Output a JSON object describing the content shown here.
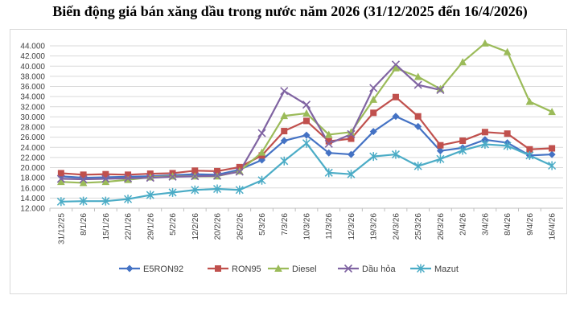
{
  "title": "Biến động giá bán xăng dầu trong nước năm 2026 (31/12/2025 đến 16/4/2026)",
  "chart_data": {
    "type": "line",
    "title": "Biến động giá bán xăng dầu trong nước năm 2026 (31/12/2025 đến 16/4/2026)",
    "xlabel": "",
    "ylabel": "",
    "ylim": [
      12000,
      44000
    ],
    "yticks": [
      12000,
      14000,
      16000,
      18000,
      20000,
      22000,
      24000,
      26000,
      28000,
      30000,
      32000,
      34000,
      36000,
      38000,
      40000,
      42000,
      44000
    ],
    "ytick_labels": [
      "12.000",
      "14.000",
      "16.000",
      "18.000",
      "20.000",
      "22.000",
      "24.000",
      "26.000",
      "28.000",
      "30.000",
      "32.000",
      "34.000",
      "36.000",
      "38.000",
      "40.000",
      "42.000",
      "44.000"
    ],
    "grid": true,
    "legend_position": "bottom",
    "categories": [
      "31/12/25",
      "8/1/26",
      "15/1/26",
      "22/1/26",
      "29/1/26",
      "5/2/26",
      "12/2/26",
      "20/2/26",
      "26/2/26",
      "5/3/26",
      "7/3/26",
      "10/3/26",
      "11/3/26",
      "12/3/26",
      "19/3/26",
      "24/3/26",
      "25/3/26",
      "26/3/26",
      "2/4/26",
      "3/4/26",
      "8/4/26",
      "9/4/26",
      "16/4/26"
    ],
    "series": [
      {
        "name": "E5RON92",
        "color": "#4472C4",
        "marker": "diamond",
        "values": [
          18300,
          18000,
          18100,
          18200,
          18300,
          18500,
          18700,
          18600,
          19600,
          21500,
          25300,
          26400,
          22900,
          22600,
          27100,
          30100,
          28100,
          23300,
          23900,
          25500,
          24900,
          22400,
          22600
        ]
      },
      {
        "name": "RON95",
        "color": "#C0504D",
        "marker": "square",
        "values": [
          18900,
          18600,
          18700,
          18600,
          18800,
          18900,
          19400,
          19300,
          20100,
          22400,
          27200,
          29200,
          25200,
          25700,
          30800,
          33900,
          30100,
          24400,
          25300,
          27000,
          26700,
          23600,
          23800
        ]
      },
      {
        "name": "Diesel",
        "color": "#9BBB59",
        "marker": "triangle",
        "values": [
          17200,
          17000,
          17200,
          17600,
          18100,
          18300,
          18300,
          18300,
          19300,
          23000,
          30200,
          30700,
          26500,
          27000,
          33400,
          39600,
          37900,
          35500,
          40800,
          44500,
          42800,
          33000,
          31000
        ]
      },
      {
        "name": "Dầu hỏa",
        "color": "#8064A2",
        "marker": "x",
        "values": [
          17800,
          17700,
          17800,
          17900,
          18000,
          18200,
          18300,
          18400,
          19200,
          26800,
          35100,
          32400,
          24700,
          26600,
          35700,
          40300,
          36300,
          35300,
          null,
          null,
          null,
          null,
          null
        ]
      },
      {
        "name": "Mazut",
        "color": "#4BACC6",
        "marker": "star",
        "values": [
          13300,
          13400,
          13400,
          13800,
          14600,
          15100,
          15600,
          15800,
          15600,
          17500,
          21300,
          24800,
          19000,
          18700,
          22200,
          22600,
          20300,
          21700,
          23400,
          24600,
          24300,
          22400,
          20400
        ]
      }
    ]
  }
}
